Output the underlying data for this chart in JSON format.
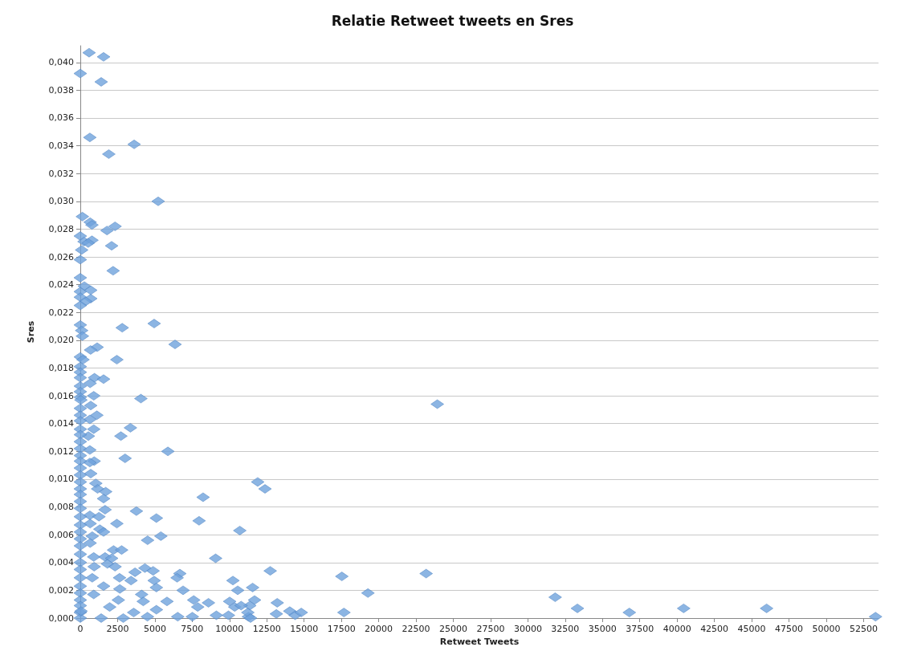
{
  "chart_data": {
    "type": "scatter",
    "title": "Relatie Retweet tweets en Sres",
    "xlabel": "Retweet Tweets",
    "ylabel": "Sres",
    "marker": "diamond",
    "grid": "y",
    "color": "#6fa3dc",
    "xlim": [
      0,
      53500
    ],
    "xticks": [
      0,
      2500,
      5000,
      7500,
      10000,
      12500,
      15000,
      17500,
      20000,
      22500,
      25000,
      27500,
      30000,
      32500,
      35000,
      37500,
      40000,
      42500,
      45000,
      47500,
      50000,
      52500
    ],
    "ylim": [
      0,
      0.0412
    ],
    "yticks": [
      {
        "value": 0,
        "label": "0,000"
      },
      {
        "value": 0.002,
        "label": "0,002"
      },
      {
        "value": 0.004,
        "label": "0,004"
      },
      {
        "value": 0.006,
        "label": "0,006"
      },
      {
        "value": 0.008,
        "label": "0,008"
      },
      {
        "value": 0.01,
        "label": "0,010"
      },
      {
        "value": 0.012,
        "label": "0,012"
      },
      {
        "value": 0.014,
        "label": "0,014"
      },
      {
        "value": 0.016,
        "label": "0,016"
      },
      {
        "value": 0.018,
        "label": "0,018"
      },
      {
        "value": 0.02,
        "label": "0,020"
      },
      {
        "value": 0.022,
        "label": "0,022"
      },
      {
        "value": 0.024,
        "label": "0,024"
      },
      {
        "value": 0.026,
        "label": "0,026"
      },
      {
        "value": 0.028,
        "label": "0,028"
      },
      {
        "value": 0.03,
        "label": "0,030"
      },
      {
        "value": 0.032,
        "label": "0,032"
      },
      {
        "value": 0.034,
        "label": "0,034"
      },
      {
        "value": 0.036,
        "label": "0,036"
      },
      {
        "value": 0.038,
        "label": "0,038"
      },
      {
        "value": 0.04,
        "label": "0,040"
      }
    ],
    "x": [
      590,
      1560,
      0,
      1400,
      640,
      3610,
      1910,
      5220,
      140,
      660,
      780,
      2330,
      1790,
      0,
      250,
      780,
      530,
      2100,
      90,
      0,
      2200,
      0,
      270,
      0,
      700,
      0,
      700,
      360,
      0,
      0,
      90,
      140,
      2810,
      4950,
      6350,
      1130,
      690,
      0,
      180,
      2450,
      0,
      0,
      0,
      950,
      1560,
      660,
      0,
      0,
      0,
      900,
      40,
      4060,
      700,
      0,
      0,
      1110,
      640,
      0,
      0,
      900,
      3360,
      2720,
      540,
      0,
      0,
      0,
      640,
      5870,
      0,
      3000,
      930,
      640,
      0,
      0,
      700,
      0,
      0,
      1040,
      0,
      1160,
      1700,
      1560,
      8230,
      0,
      0,
      0,
      1660,
      3760,
      640,
      1250,
      5100,
      7960,
      0,
      660,
      2450,
      0,
      0,
      1310,
      1560,
      10690,
      800,
      5400,
      0,
      4510,
      0,
      660,
      2230,
      2770,
      0,
      900,
      1660,
      2100,
      9070,
      0,
      1820,
      2330,
      930,
      4330,
      0,
      4880,
      6670,
      3670,
      2630,
      6490,
      0,
      800,
      4950,
      3400,
      10230,
      0,
      1560,
      5100,
      2650,
      6890,
      10550,
      0,
      4110,
      900,
      7600,
      5810,
      2550,
      0,
      8590,
      10010,
      4220,
      0,
      1970,
      7870,
      10350,
      5100,
      0,
      3580,
      9120,
      6530,
      7510,
      9930,
      11270,
      0,
      1400,
      2880,
      4500,
      50,
      23930,
      11890,
      12380,
      12730,
      17530,
      23180,
      11550,
      19280,
      11680,
      13200,
      11360,
      10780,
      11230,
      13140,
      14040,
      14400,
      14810,
      11410,
      17670,
      31830,
      33320,
      36800,
      40440,
      46000,
      53300
    ],
    "values": [
      0.0407,
      0.0404,
      0.0392,
      0.0386,
      0.0346,
      0.0341,
      0.0334,
      0.03,
      0.0289,
      0.0285,
      0.0283,
      0.0282,
      0.0279,
      0.0275,
      0.0271,
      0.0272,
      0.027,
      0.0268,
      0.0265,
      0.0258,
      0.025,
      0.0245,
      0.0239,
      0.0235,
      0.0236,
      0.0231,
      0.023,
      0.0228,
      0.0225,
      0.0211,
      0.0207,
      0.0203,
      0.0209,
      0.0212,
      0.0197,
      0.0195,
      0.0193,
      0.0188,
      0.0186,
      0.0186,
      0.0181,
      0.0177,
      0.0173,
      0.0173,
      0.0172,
      0.0169,
      0.0167,
      0.0163,
      0.0159,
      0.016,
      0.0157,
      0.0158,
      0.0153,
      0.0151,
      0.0146,
      0.0146,
      0.0143,
      0.0142,
      0.0136,
      0.0136,
      0.0137,
      0.0131,
      0.0131,
      0.0132,
      0.0127,
      0.0122,
      0.0121,
      0.012,
      0.0117,
      0.0115,
      0.0113,
      0.0112,
      0.0113,
      0.0108,
      0.0104,
      0.0103,
      0.0098,
      0.0097,
      0.0093,
      0.0093,
      0.0091,
      0.0086,
      0.0087,
      0.0089,
      0.0084,
      0.0079,
      0.0078,
      0.0077,
      0.0074,
      0.0073,
      0.0072,
      0.007,
      0.0073,
      0.0068,
      0.0068,
      0.0067,
      0.0062,
      0.0064,
      0.0062,
      0.0063,
      0.0059,
      0.0059,
      0.0057,
      0.0056,
      0.0052,
      0.0054,
      0.0049,
      0.0049,
      0.0046,
      0.0044,
      0.0044,
      0.0043,
      0.0043,
      0.004,
      0.0039,
      0.0037,
      0.0037,
      0.0036,
      0.0035,
      0.0034,
      0.0032,
      0.0033,
      0.0029,
      0.0029,
      0.0029,
      0.0029,
      0.0027,
      0.0027,
      0.0027,
      0.0023,
      0.0023,
      0.0022,
      0.0021,
      0.002,
      0.002,
      0.0018,
      0.0017,
      0.0017,
      0.0013,
      0.0012,
      0.0013,
      0.0013,
      0.0011,
      0.0012,
      0.0012,
      0.0009,
      0.0008,
      0.0008,
      0.0008,
      0.0006,
      0.0004,
      0.0004,
      0.0002,
      0.0001,
      0.0001,
      0.0002,
      0.0001,
      0,
      0,
      0,
      0.0001,
      0.0005,
      0.0154,
      0.0098,
      0.0093,
      0.0034,
      0.003,
      0.0032,
      0.0022,
      0.0018,
      0.0013,
      0.0011,
      0.0009,
      0.0009,
      0.0004,
      0.0003,
      0.0005,
      0.0002,
      0.0004,
      0,
      0.0004,
      0.0015,
      0.0007,
      0.0004,
      0.0007,
      0.0007,
      0.0001
    ]
  }
}
